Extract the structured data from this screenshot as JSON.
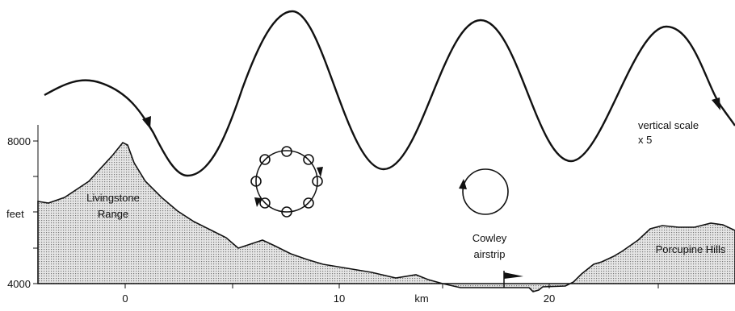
{
  "y_axis": {
    "label": "feet",
    "ticks": [
      "8000",
      "4000"
    ]
  },
  "x_axis": {
    "label": "km",
    "ticks": [
      "0",
      "10",
      "20"
    ]
  },
  "labels": {
    "range": [
      "Livingstone",
      "Range"
    ],
    "scale": [
      "vertical scale",
      "x 5"
    ],
    "airstrip": [
      "Cowley",
      "airstrip"
    ],
    "hills": "Porcupine Hills"
  }
}
